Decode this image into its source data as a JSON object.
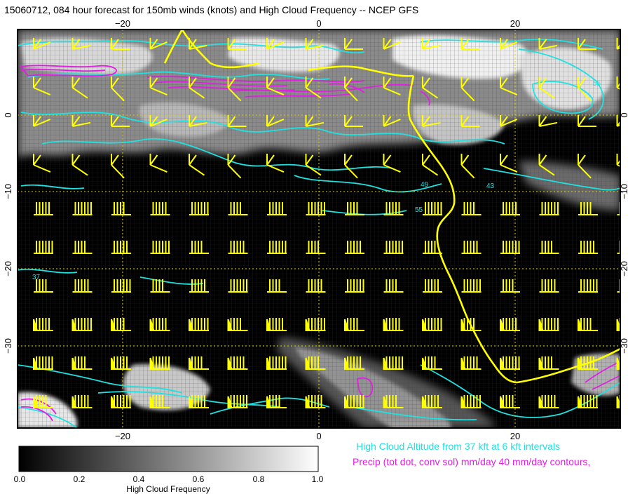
{
  "title": "15060712, 084 hour forecast for 150mb winds (knots) and High Cloud Frequency -- NCEP GFS",
  "axes": {
    "x_ticks": [
      {
        "label": "−20",
        "value": -20
      },
      {
        "label": "0",
        "value": 0
      },
      {
        "label": "20",
        "value": 20
      }
    ],
    "y_ticks": [
      {
        "label": "0",
        "value": 0
      },
      {
        "label": "−10",
        "value": -10
      },
      {
        "label": "−20",
        "value": -20
      },
      {
        "label": "−30",
        "value": -30
      }
    ],
    "lon_range": [
      -30,
      31
    ],
    "lat_range": [
      9,
      -40
    ]
  },
  "colorbar": {
    "title": "High Cloud Frequency",
    "tick_labels": [
      "0.0",
      "0.2",
      "0.4",
      "0.6",
      "0.8",
      "1.0"
    ],
    "range": [
      0.0,
      1.0
    ]
  },
  "legend": {
    "cloud_altitude": "High Cloud Altitude from 37 kft at 6 kft intervals",
    "precip": "Precip (tot dot, conv sol) mm/day 40 mm/day contours,"
  },
  "contour_labels": [
    "37",
    "43",
    "49",
    "55"
  ],
  "colors": {
    "wind_barbs": "#ffff00",
    "cloud_altitude_contours": "#20e0e0",
    "precip_contours": "#e020e0",
    "coastline": "#ffff00",
    "grid": "#e0d000",
    "background": "#000000"
  }
}
